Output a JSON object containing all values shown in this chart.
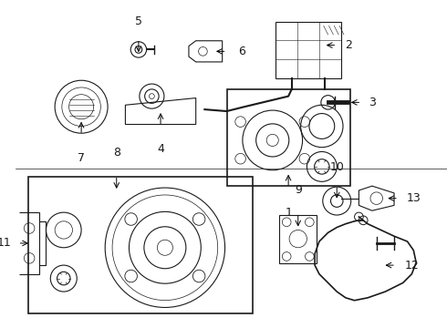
{
  "bg_color": "#ffffff",
  "lc": "#1a1a1a",
  "lw": 0.8,
  "figsize": [
    4.9,
    3.6
  ],
  "dpi": 100,
  "xlim": [
    0,
    490
  ],
  "ylim": [
    0,
    360
  ]
}
